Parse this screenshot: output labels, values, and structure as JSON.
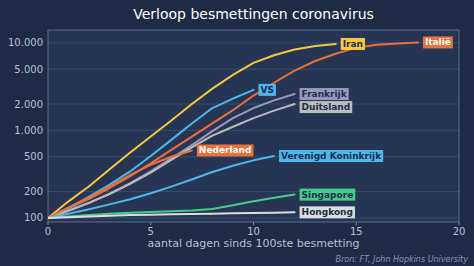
{
  "chart_data": {
    "type": "line",
    "title": "Verloop besmettingen coronavirus",
    "x_label": "aantal dagen sinds 100ste besmetting",
    "source": "Bron: FT, John Hopkins University",
    "log": "y",
    "grid": true,
    "xlim": [
      0,
      20
    ],
    "ylim": [
      90,
      14000
    ],
    "xticks": [
      0,
      5,
      10,
      15,
      20
    ],
    "yticks": [
      100,
      200,
      500,
      {
        "value": 1000,
        "label": "1.000"
      },
      {
        "value": 2000,
        "label": "2.000"
      },
      {
        "value": 5000,
        "label": "5.000"
      },
      {
        "value": 10000,
        "label": "10.000"
      }
    ],
    "series": [
      {
        "name": "Italië",
        "color": "#e8703a",
        "x": [
          0,
          1,
          2,
          3,
          4,
          5,
          6,
          7,
          8,
          9,
          10,
          11,
          12,
          13,
          14,
          15,
          16,
          17,
          18
        ],
        "values": [
          100,
          130,
          165,
          220,
          300,
          420,
          600,
          850,
          1200,
          1700,
          2500,
          3500,
          4800,
          6200,
          7500,
          8800,
          9500,
          9800,
          10100
        ]
      },
      {
        "name": "Iran",
        "color": "#f5c842",
        "x": [
          0,
          1,
          2,
          3,
          4,
          5,
          6,
          7,
          8,
          9,
          10,
          11,
          12,
          13,
          14
        ],
        "values": [
          100,
          155,
          230,
          360,
          560,
          850,
          1300,
          2000,
          3000,
          4300,
          5900,
          7200,
          8400,
          9200,
          9700
        ]
      },
      {
        "name": "VS",
        "color": "#4db8e8",
        "x": [
          0,
          1,
          2,
          3,
          4,
          5,
          6,
          7,
          8,
          9,
          10
        ],
        "values": [
          100,
          130,
          175,
          240,
          340,
          510,
          780,
          1200,
          1800,
          2300,
          2900
        ]
      },
      {
        "name": "Frankrijk",
        "color": "#9999bb",
        "x": [
          0,
          1,
          2,
          3,
          4,
          5,
          6,
          7,
          8,
          9,
          10,
          11,
          12
        ],
        "values": [
          100,
          120,
          148,
          190,
          250,
          340,
          480,
          680,
          980,
          1380,
          1800,
          2200,
          2600
        ]
      },
      {
        "name": "Duitsland",
        "color": "#bbbbbb",
        "x": [
          0,
          1,
          2,
          3,
          4,
          5,
          6,
          7,
          8,
          9,
          10,
          11,
          12
        ],
        "values": [
          100,
          122,
          150,
          188,
          245,
          330,
          460,
          640,
          870,
          1100,
          1380,
          1680,
          2000
        ]
      },
      {
        "name": "Nederland",
        "color": "#e8703a",
        "x": [
          0,
          1,
          2,
          3,
          4,
          5,
          6,
          7
        ],
        "values": [
          100,
          132,
          172,
          228,
          310,
          405,
          500,
          590
        ]
      },
      {
        "name": "Verenigd Koninkrijk",
        "color": "#4db8e8",
        "x": [
          0,
          1,
          2,
          3,
          4,
          5,
          6,
          7,
          8,
          9,
          10,
          11
        ],
        "values": [
          100,
          112,
          126,
          143,
          164,
          192,
          228,
          275,
          335,
          395,
          455,
          510
        ]
      },
      {
        "name": "Singapore",
        "color": "#44cc88",
        "x": [
          0,
          1,
          2,
          3,
          4,
          5,
          6,
          7,
          8,
          9,
          10,
          11,
          12
        ],
        "values": [
          100,
          104,
          108,
          112,
          115,
          117,
          119,
          122,
          127,
          140,
          155,
          170,
          185
        ]
      },
      {
        "name": "Hongkong",
        "color": "#dddddd",
        "x": [
          0,
          1,
          2,
          3,
          4,
          5,
          6,
          7,
          8,
          9,
          10,
          11,
          12
        ],
        "values": [
          100,
          102,
          104,
          106,
          108,
          109,
          110,
          111,
          112,
          113,
          114,
          115,
          116
        ]
      }
    ]
  }
}
